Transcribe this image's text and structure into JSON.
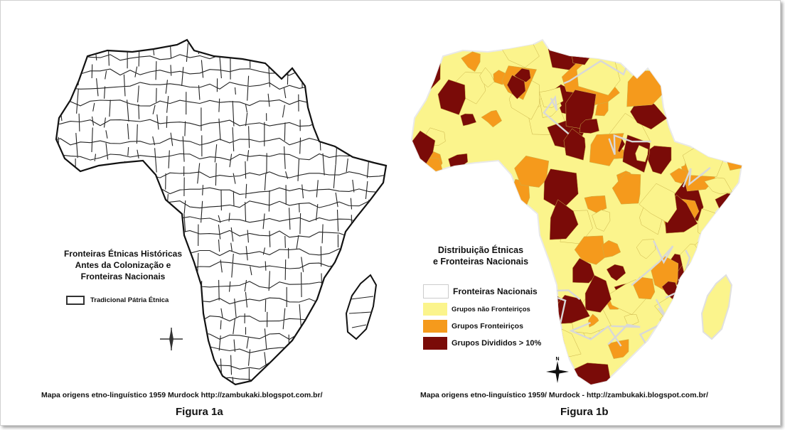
{
  "figure_a": {
    "title_lines": [
      "Fronteiras Étnicas Históricas",
      "Antes da Colonização e",
      "Fronteiras Nacionais"
    ],
    "legend_label": "Tradicional Pátria Étnica",
    "credit": "Mapa origens etno-linguístico 1959 Murdock http://zambukaki.blogspot.com.br/",
    "label": "Figura 1a"
  },
  "figure_b": {
    "title_lines": [
      "Distribuição Étnicas",
      "e Fronteiras Nacionais"
    ],
    "legend": [
      {
        "label": "Fronteiras Nacionais",
        "color": "#ffffff"
      },
      {
        "label": "Grupos não Fronteiriços",
        "color": "#fbf48c"
      },
      {
        "label": "Grupos Fronteiriços",
        "color": "#f59a1c"
      },
      {
        "label": "Grupos Divididos > 10%",
        "color": "#7a0b08"
      }
    ],
    "credit": "Mapa origens etno-linguístico 1959/ Murdock - http://zambukaki.blogspot.com.br/",
    "label": "Figura 1b"
  },
  "compass_label": "N"
}
